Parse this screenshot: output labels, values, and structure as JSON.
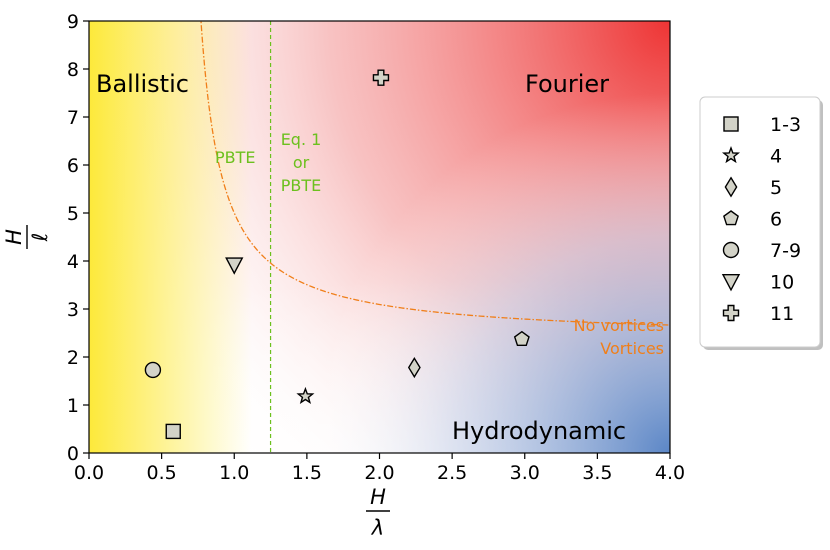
{
  "chart_data": {
    "type": "scatter",
    "xlabel_num": "H",
    "xlabel_den": "λ",
    "ylabel_num": "H",
    "ylabel_den": "ℓ",
    "xlim": [
      0.0,
      4.0
    ],
    "ylim": [
      0,
      9
    ],
    "xticks": [
      "0.0",
      "0.5",
      "1.0",
      "1.5",
      "2.0",
      "2.5",
      "3.0",
      "3.5",
      "4.0"
    ],
    "yticks": [
      "0",
      "1",
      "2",
      "3",
      "4",
      "5",
      "6",
      "7",
      "8",
      "9"
    ],
    "grid": false,
    "legend_position": "right",
    "regions": {
      "ballistic": "Ballistic",
      "fourier": "Fourier",
      "hydrodynamic": "Hydrodynamic"
    },
    "annotations": {
      "pbte_left": "PBTE",
      "eq_line1": "Eq. 1",
      "eq_line2": "or",
      "eq_line3": "PBTE",
      "no_vortices": "No vortices",
      "vortices": "Vortices"
    },
    "vertical_line_x": 1.25,
    "boundary_curve": {
      "form": "y = 2.37 + 1.0/(x - 0.62)",
      "asymptote_y": 2.37
    },
    "series": [
      {
        "name": "1-3",
        "marker": "square",
        "x": [
          0.58
        ],
        "y": [
          0.45
        ]
      },
      {
        "name": "4",
        "marker": "star",
        "x": [
          1.49
        ],
        "y": [
          1.18
        ]
      },
      {
        "name": "5",
        "marker": "diamond",
        "x": [
          2.24
        ],
        "y": [
          1.78
        ]
      },
      {
        "name": "6",
        "marker": "pentagon",
        "x": [
          2.98
        ],
        "y": [
          2.37
        ]
      },
      {
        "name": "7-9",
        "marker": "circle",
        "x": [
          0.44
        ],
        "y": [
          1.73
        ]
      },
      {
        "name": "10",
        "marker": "triangle-down",
        "x": [
          1.0
        ],
        "y": [
          3.92
        ]
      },
      {
        "name": "11",
        "marker": "plus",
        "x": [
          2.01
        ],
        "y": [
          7.82
        ]
      }
    ],
    "colors": {
      "ballistic": "#fde93a",
      "fourier": "#ee3434",
      "hydrodynamic": "#5b86c6",
      "boundary_curve": "#f07f1a",
      "vertical_line": "#6cc01e",
      "pbte_text": "#6cc01e",
      "vortex_text": "#f07f1a",
      "marker_fill": "#d3d3c8"
    }
  }
}
